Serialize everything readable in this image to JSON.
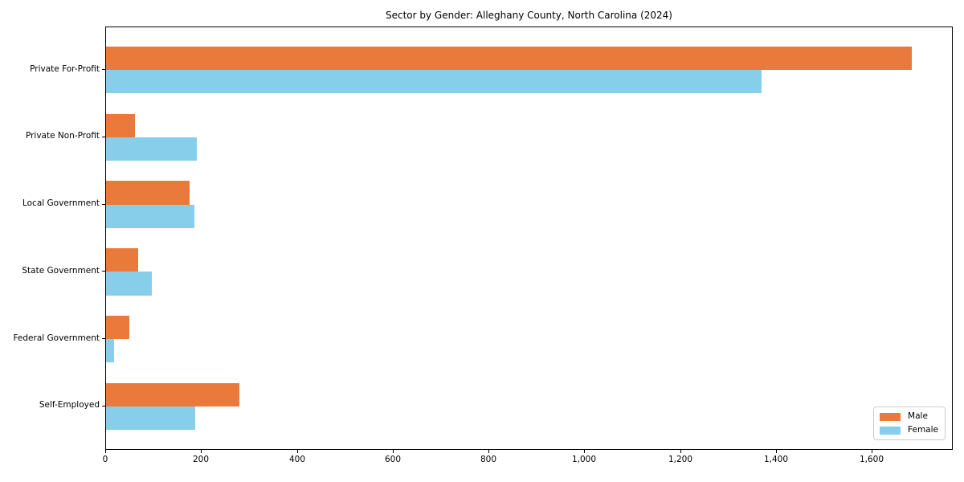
{
  "chart_data": {
    "type": "bar",
    "orientation": "horizontal",
    "title": "Sector by Gender: Alleghany County, North Carolina (2024)",
    "categories": [
      "Private For-Profit",
      "Private Non-Profit",
      "Local Government",
      "State Government",
      "Federal Government",
      "Self-Employed"
    ],
    "series": [
      {
        "name": "Male",
        "color": "#E97A3C",
        "values": [
          1682,
          60,
          175,
          67,
          49,
          279
        ]
      },
      {
        "name": "Female",
        "color": "#87CEEB",
        "values": [
          1369,
          190,
          184,
          95,
          16,
          186
        ]
      }
    ],
    "xlabel": "",
    "ylabel": "",
    "xlim": [
      0,
      1766
    ],
    "x_ticks": [
      0,
      200,
      400,
      600,
      800,
      1000,
      1200,
      1400,
      1600
    ],
    "x_tick_labels": [
      "0",
      "200",
      "400",
      "600",
      "800",
      "1,000",
      "1,200",
      "1,400",
      "1,600"
    ],
    "grid": false,
    "legend": {
      "position": "lower right",
      "items": [
        {
          "label": "Male",
          "color": "#E97A3C"
        },
        {
          "label": "Female",
          "color": "#87CEEB"
        }
      ]
    }
  }
}
